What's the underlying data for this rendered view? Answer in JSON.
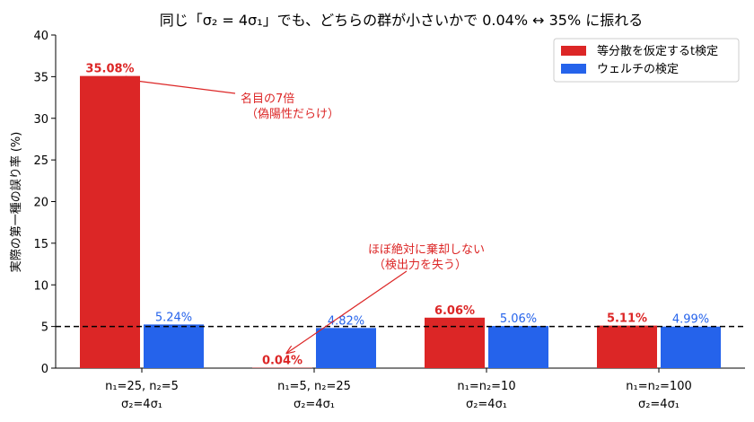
{
  "chart_data": {
    "type": "bar",
    "title": "同じ「σ₂ = 4σ₁」でも、どちらの群が小さいかで 0.04% ↔ 35% に振れる",
    "ylabel": "実際の第一種の誤り率 (%)",
    "ylim": [
      0,
      40
    ],
    "yticks": [
      0,
      5,
      10,
      15,
      20,
      25,
      30,
      35,
      40
    ],
    "grid": false,
    "legend_position": "top-right",
    "reference_line": {
      "value": 5,
      "style": "dashed",
      "color": "#000000"
    },
    "categories": [
      {
        "line1": "n₁=25, n₂=5",
        "line2": "σ₂=4σ₁"
      },
      {
        "line1": "n₁=5, n₂=25",
        "line2": "σ₂=4σ₁"
      },
      {
        "line1": "n₁=n₂=10",
        "line2": "σ₂=4σ₁"
      },
      {
        "line1": "n₁=n₂=100",
        "line2": "σ₂=4σ₁"
      }
    ],
    "series": [
      {
        "name": "等分散を仮定するt検定",
        "color": "#dc2626",
        "values": [
          35.08,
          0.04,
          6.06,
          5.11
        ],
        "labels": [
          "35.08%",
          "0.04%",
          "6.06%",
          "5.11%"
        ]
      },
      {
        "name": "ウェルチの検定",
        "color": "#2563eb",
        "values": [
          5.24,
          4.82,
          5.06,
          4.99
        ],
        "labels": [
          "5.24%",
          "4.82%",
          "5.06%",
          "4.99%"
        ]
      }
    ],
    "annotations": [
      {
        "lines": [
          "名目の7倍",
          "（偽陽性だらけ）"
        ],
        "color": "#dc2626",
        "points_to": {
          "category": 0,
          "value": 35.08
        }
      },
      {
        "lines": [
          "ほぼ絶対に棄却しない",
          "（検出力を失う）"
        ],
        "color": "#dc2626",
        "points_to": {
          "category": 1,
          "value": 1.8
        }
      }
    ]
  }
}
